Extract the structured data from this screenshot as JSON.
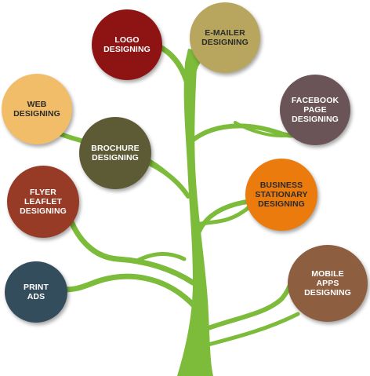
{
  "tree": {
    "trunk_color": "#7cbc3a",
    "nodes": [
      {
        "id": "logo",
        "label": "LOGO\nDESIGNING",
        "color": "#8e1414"
      },
      {
        "id": "emailer",
        "label": "E-MAILER\nDESIGNING",
        "color": "#b8a65e"
      },
      {
        "id": "web",
        "label": "WEB\nDESIGNING",
        "color": "#f2bd68"
      },
      {
        "id": "facebook",
        "label": "FACEBOOK\nPAGE\nDESIGNING",
        "color": "#6a5457"
      },
      {
        "id": "brochure",
        "label": "BROCHURE\nDESIGNING",
        "color": "#5d5b35"
      },
      {
        "id": "business",
        "label": "BUSINESS\nSTATIONARY\nDESIGNING",
        "color": "#ea7b0c"
      },
      {
        "id": "flyer",
        "label": "FLYER\nLEAFLET\nDESIGNING",
        "color": "#973b27"
      },
      {
        "id": "print",
        "label": "PRINT\nADS",
        "color": "#344d5c"
      },
      {
        "id": "mobile",
        "label": "MOBILE\nAPPS\nDESIGNING",
        "color": "#8e5e40"
      }
    ]
  }
}
